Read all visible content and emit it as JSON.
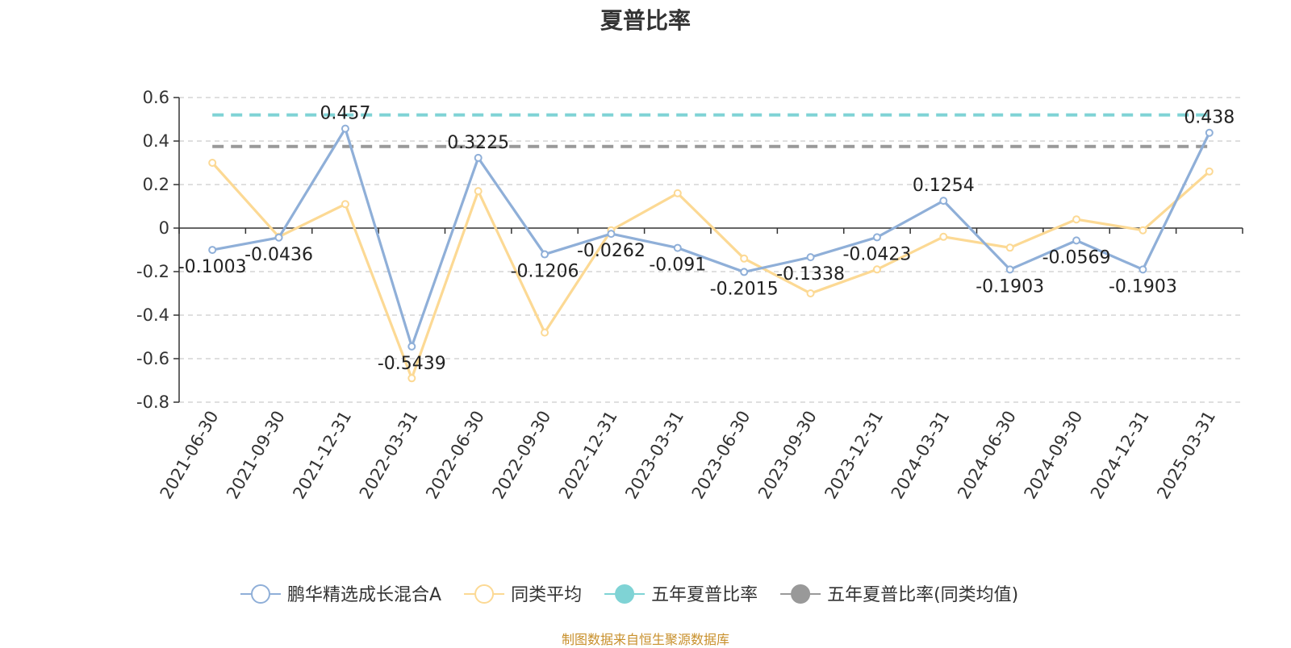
{
  "chart_data": {
    "type": "line",
    "title": "夏普比率",
    "xlabel": "",
    "ylabel": "",
    "ylim": [
      -0.8,
      0.6
    ],
    "y_ticks": [
      0.6,
      0.4,
      0.2,
      0,
      -0.2,
      -0.4,
      -0.6,
      -0.8
    ],
    "grid": true,
    "legend_position": "bottom",
    "categories": [
      "2021-06-30",
      "2021-09-30",
      "2021-12-31",
      "2022-03-31",
      "2022-06-30",
      "2022-09-30",
      "2022-12-31",
      "2023-03-31",
      "2023-06-30",
      "2023-09-30",
      "2023-12-31",
      "2024-03-31",
      "2024-06-30",
      "2024-09-30",
      "2024-12-31",
      "2025-03-31"
    ],
    "series": [
      {
        "name": "鹏华精选成长混合A",
        "color": "#8fafd8",
        "values": [
          -0.1003,
          -0.0436,
          0.457,
          -0.5439,
          0.3225,
          -0.1206,
          -0.0262,
          -0.091,
          -0.2015,
          -0.1338,
          -0.0423,
          0.1254,
          -0.1903,
          -0.0569,
          -0.1903,
          0.438
        ],
        "labels": [
          "-0.1003",
          "-0.0436",
          "0.457",
          "-0.5439",
          "0.3225",
          "-0.1206",
          "-0.0262",
          "-0.091",
          "-0.2015",
          "-0.1338",
          "-0.0423",
          "0.1254",
          "-0.1903",
          "-0.0569",
          "-0.1903",
          "0.438"
        ]
      },
      {
        "name": "同类平均",
        "color": "#fcd994",
        "values": [
          0.3,
          -0.04,
          0.11,
          -0.69,
          0.17,
          -0.48,
          -0.01,
          0.16,
          -0.14,
          -0.3,
          -0.19,
          -0.04,
          -0.09,
          0.04,
          -0.01,
          0.26
        ]
      },
      {
        "name": "五年夏普比率",
        "color": "#7fd3d5",
        "values": [
          0.52,
          0.52,
          0.52,
          0.52,
          0.52,
          0.52,
          0.52,
          0.52,
          0.52,
          0.52,
          0.52,
          0.52,
          0.52,
          0.52,
          0.52,
          0.52
        ]
      },
      {
        "name": "五年夏普比率(同类均值)",
        "color": "#999999",
        "values": [
          0.375,
          0.375,
          0.375,
          0.375,
          0.375,
          0.375,
          0.375,
          0.375,
          0.375,
          0.375,
          0.375,
          0.375,
          0.375,
          0.375,
          0.375,
          0.375
        ]
      }
    ],
    "source_note": "制图数据来自恒生聚源数据库"
  }
}
